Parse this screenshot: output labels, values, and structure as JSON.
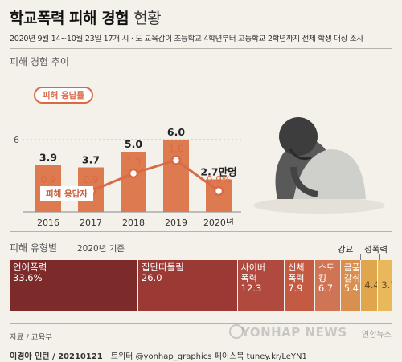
{
  "title": {
    "main": "학교폭력 피해 경험",
    "light": "현황"
  },
  "subtitle": "2020년 9월 14~10월 23일 17개 시 · 도 교육감이 초등학교 4학년부터 고등학교 2학년까지 전체 학생 대상 조사",
  "section1": {
    "title": "피해 경험 추이"
  },
  "section2": {
    "title": "피해 유형별",
    "note": "2020년 기준"
  },
  "chart_data": [
    {
      "type": "bar",
      "title": "피해 경험 추이",
      "categories": [
        "2016",
        "2017",
        "2018",
        "2019",
        "2020년"
      ],
      "series": [
        {
          "name": "피해 응답자",
          "unit": "만명",
          "values": [
            3.9,
            3.7,
            5.0,
            6.0,
            2.7
          ],
          "labels": [
            "3.9",
            "3.7",
            "5.0",
            "6.0",
            "2.7만명"
          ]
        },
        {
          "name": "피해 응답률",
          "unit": "%",
          "type": "line",
          "values": [
            0.9,
            0.9,
            1.3,
            1.6,
            0.9
          ],
          "labels": [
            "0.9",
            "0.9",
            "1.3",
            "1.6",
            "0.9%"
          ]
        }
      ],
      "yaxis": {
        "tick_label": "6",
        "tick_value": 6,
        "ylim": [
          0,
          7.6
        ]
      },
      "grid": true
    },
    {
      "type": "bar",
      "subtype": "stacked-100",
      "title": "피해 유형별",
      "note": "2020년 기준",
      "unit": "%",
      "segments": [
        {
          "name": "언어폭력",
          "value": 33.6,
          "label": "33.6%",
          "color": "#7d2a2a"
        },
        {
          "name": "집단따돌림",
          "value": 26.0,
          "label": "26.0",
          "color": "#9b3a35"
        },
        {
          "name": "사이버\n폭력",
          "value": 12.3,
          "label": "12.3",
          "color": "#b04a3f"
        },
        {
          "name": "신체\n폭력",
          "value": 7.9,
          "label": "7.9",
          "color": "#c45a42"
        },
        {
          "name": "스토킹",
          "value": 6.7,
          "label": "6.7",
          "color": "#cf7556"
        },
        {
          "name": "금품\n갈취",
          "value": 5.4,
          "label": "5.4",
          "color": "#d98f50"
        },
        {
          "name": "강요",
          "value": 4.4,
          "label": "4.4",
          "color": "#e0a64e"
        },
        {
          "name": "성폭력",
          "value": 3.7,
          "label": "3.7",
          "color": "#e9b85a"
        }
      ]
    }
  ],
  "colors": {
    "bar": "#de7a4f",
    "line": "#d96a44",
    "accent": "#c45a34"
  },
  "source": "자료 / 교육부",
  "footer": {
    "credit": "이경아 인턴 / 20210121",
    "sns": "트위터 @yonhap_graphics  페이스북 tuney.kr/LeYN1"
  },
  "watermark": "YONHAP NEWS",
  "logo": "연합뉴스",
  "illustration": "crouching-student-illustration"
}
